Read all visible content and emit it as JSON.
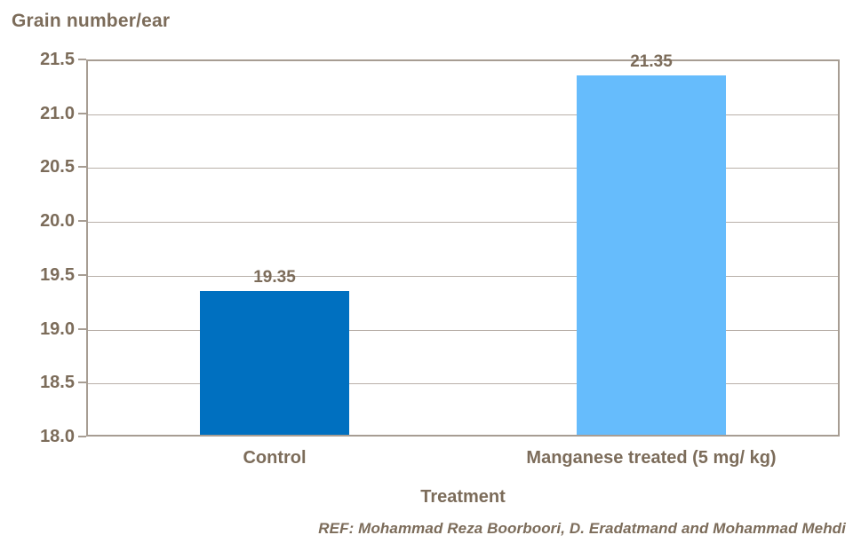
{
  "chart_data": {
    "type": "bar",
    "title": "Grain number/ear",
    "xlabel": "Treatment",
    "categories": [
      "Control",
      "Manganese treated (5 mg/ kg)"
    ],
    "values": [
      19.35,
      21.35
    ],
    "value_labels": [
      "19.35",
      "21.35"
    ],
    "bar_colors": [
      "#0070C0",
      "#66BCFC"
    ],
    "ylim": [
      18.0,
      21.5
    ],
    "ytick_step": 0.5,
    "yticks": [
      "21.5",
      "21.0",
      "20.5",
      "20.0",
      "19.5",
      "19.0",
      "18.5",
      "18.0"
    ],
    "grid": true,
    "legend": false
  },
  "footer": {
    "ref_text": "REF: Mohammad Reza Boorboori, D. Eradatmand and Mohammad Mehdi"
  },
  "colors": {
    "text": "#7c6c5a",
    "axis_border": "#a79d93",
    "gridline": "#b9b0a9",
    "bar_control": "#0070C0",
    "bar_treated": "#66BCFC",
    "background": "#ffffff"
  }
}
